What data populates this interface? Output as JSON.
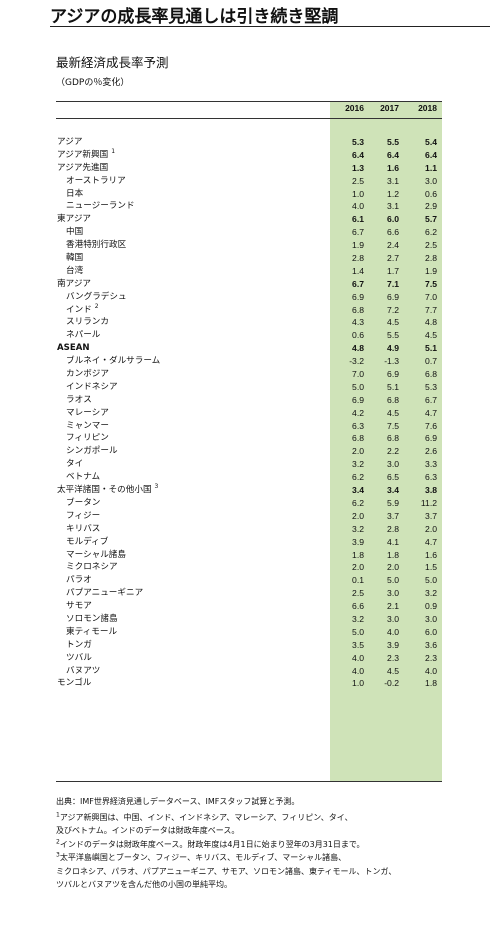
{
  "title": "アジアの成長率見通しは引き続き堅調",
  "subtitle": "最新経済成長率予測",
  "unit": "（GDPの％変化）",
  "years": [
    "2016",
    "2017",
    "2018"
  ],
  "rows": [
    {
      "label": "アジア",
      "values": [
        "5.3",
        "5.5",
        "5.4"
      ],
      "level": 0,
      "bold_values": true
    },
    {
      "label": "アジア新興国",
      "footnote": "1",
      "values": [
        "6.4",
        "6.4",
        "6.4"
      ],
      "level": 0,
      "bold_values": true
    },
    {
      "label": "アジア先進国",
      "values": [
        "1.3",
        "1.6",
        "1.1"
      ],
      "level": 0,
      "bold_values": true
    },
    {
      "label": "オーストラリア",
      "values": [
        "2.5",
        "3.1",
        "3.0"
      ],
      "level": 1
    },
    {
      "label": "日本",
      "values": [
        "1.0",
        "1.2",
        "0.6"
      ],
      "level": 1
    },
    {
      "label": "ニュージーランド",
      "values": [
        "4.0",
        "3.1",
        "2.9"
      ],
      "level": 1
    },
    {
      "label": "東アジア",
      "values": [
        "6.1",
        "6.0",
        "5.7"
      ],
      "level": 0,
      "bold_values": true
    },
    {
      "label": "中国",
      "values": [
        "6.7",
        "6.6",
        "6.2"
      ],
      "level": 1
    },
    {
      "label": "香港特別行政区",
      "values": [
        "1.9",
        "2.4",
        "2.5"
      ],
      "level": 1
    },
    {
      "label": "韓国",
      "values": [
        "2.8",
        "2.7",
        "2.8"
      ],
      "level": 1
    },
    {
      "label": "台湾",
      "values": [
        "1.4",
        "1.7",
        "1.9"
      ],
      "level": 1
    },
    {
      "label": "南アジア",
      "values": [
        "6.7",
        "7.1",
        "7.5"
      ],
      "level": 0,
      "bold_values": true
    },
    {
      "label": "バングラデシュ",
      "values": [
        "6.9",
        "6.9",
        "7.0"
      ],
      "level": 1
    },
    {
      "label": "インド",
      "footnote": "2",
      "values": [
        "6.8",
        "7.2",
        "7.7"
      ],
      "level": 1
    },
    {
      "label": "スリランカ",
      "values": [
        "4.3",
        "4.5",
        "4.8"
      ],
      "level": 1
    },
    {
      "label": "ネパール",
      "values": [
        "0.6",
        "5.5",
        "4.5"
      ],
      "level": 1
    },
    {
      "label": "ASEAN",
      "values": [
        "4.8",
        "4.9",
        "5.1"
      ],
      "level": 0,
      "bold": true
    },
    {
      "label": "ブルネイ・ダルサラーム",
      "values": [
        "-3.2",
        "-1.3",
        "0.7"
      ],
      "level": 1
    },
    {
      "label": "カンボジア",
      "values": [
        "7.0",
        "6.9",
        "6.8"
      ],
      "level": 1
    },
    {
      "label": "インドネシア",
      "values": [
        "5.0",
        "5.1",
        "5.3"
      ],
      "level": 1
    },
    {
      "label": "ラオス",
      "values": [
        "6.9",
        "6.8",
        "6.7"
      ],
      "level": 1
    },
    {
      "label": "マレーシア",
      "values": [
        "4.2",
        "4.5",
        "4.7"
      ],
      "level": 1
    },
    {
      "label": "ミャンマー",
      "values": [
        "6.3",
        "7.5",
        "7.6"
      ],
      "level": 1
    },
    {
      "label": "フィリピン",
      "values": [
        "6.8",
        "6.8",
        "6.9"
      ],
      "level": 1
    },
    {
      "label": "シンガポール",
      "values": [
        "2.0",
        "2.2",
        "2.6"
      ],
      "level": 1
    },
    {
      "label": "タイ",
      "values": [
        "3.2",
        "3.0",
        "3.3"
      ],
      "level": 1
    },
    {
      "label": "ベトナム",
      "values": [
        "6.2",
        "6.5",
        "6.3"
      ],
      "level": 1
    },
    {
      "label": "太平洋諸国・その他小国",
      "footnote": "3",
      "values": [
        "3.4",
        "3.4",
        "3.8"
      ],
      "level": 0,
      "bold_values": true
    },
    {
      "label": "ブータン",
      "values": [
        "6.2",
        "5.9",
        "11.2"
      ],
      "level": 1
    },
    {
      "label": "フィジー",
      "values": [
        "2.0",
        "3.7",
        "3.7"
      ],
      "level": 1
    },
    {
      "label": "キリバス",
      "values": [
        "3.2",
        "2.8",
        "2.0"
      ],
      "level": 1
    },
    {
      "label": "モルディブ",
      "values": [
        "3.9",
        "4.1",
        "4.7"
      ],
      "level": 1
    },
    {
      "label": "マーシャル諸島",
      "values": [
        "1.8",
        "1.8",
        "1.6"
      ],
      "level": 1
    },
    {
      "label": "ミクロネシア",
      "values": [
        "2.0",
        "2.0",
        "1.5"
      ],
      "level": 1
    },
    {
      "label": "パラオ",
      "values": [
        "0.1",
        "5.0",
        "5.0"
      ],
      "level": 1
    },
    {
      "label": "パプアニューギニア",
      "values": [
        "2.5",
        "3.0",
        "3.2"
      ],
      "level": 1
    },
    {
      "label": "サモア",
      "values": [
        "6.6",
        "2.1",
        "0.9"
      ],
      "level": 1
    },
    {
      "label": "ソロモン諸島",
      "values": [
        "3.2",
        "3.0",
        "3.0"
      ],
      "level": 1
    },
    {
      "label": "東ティモール",
      "values": [
        "5.0",
        "4.0",
        "6.0"
      ],
      "level": 1
    },
    {
      "label": "トンガ",
      "values": [
        "3.5",
        "3.9",
        "3.6"
      ],
      "level": 1
    },
    {
      "label": "ツバル",
      "values": [
        "4.0",
        "2.3",
        "2.3"
      ],
      "level": 1
    },
    {
      "label": "バヌアツ",
      "values": [
        "4.0",
        "4.5",
        "4.0"
      ],
      "level": 1
    },
    {
      "label": "モンゴル",
      "values": [
        "1.0",
        "-0.2",
        "1.8"
      ],
      "level": 0
    }
  ],
  "notes": {
    "source": "出典：IMF世界経済見通しデータベース、IMFスタッフ試算と予測。",
    "n1_mark": "1",
    "n1_line1": "アジア新興国は、中国、インド、インドネシア、マレーシア、フィリピン、タイ、",
    "n1_line2": "及びベトナム。インドのデータは財政年度ベース。",
    "n2_mark": "2",
    "n2_line1": "インドのデータは財政年度ベース。財政年度は4月1日に始まり翌年の3月31日まで。",
    "n3_mark": "3",
    "n3_line1": "太平洋島嶼国とブータン、フィジー、キリバス、モルディブ、マーシャル諸島、",
    "n3_line2": "ミクロネシア、パラオ、パプアニューギニア、サモア、ソロモン諸島、東ティモール、トンガ、",
    "n3_line3": "ツバルとバヌアツを含んだ他の小国の単純平均。"
  }
}
